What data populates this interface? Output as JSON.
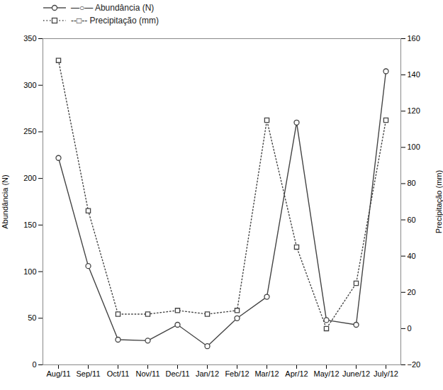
{
  "chart_data": {
    "type": "line",
    "categories": [
      "Aug/11",
      "Sep/11",
      "Oct/11",
      "Nov/11",
      "Dec/11",
      "Jan/12",
      "Feb/12",
      "Mar/12",
      "Apr/12",
      "May/12",
      "June/12",
      "July/12"
    ],
    "series": [
      {
        "name": "—○— Abundância (N)",
        "color": "#444444",
        "marker": "circle",
        "line_style": "solid",
        "values": [
          222,
          106,
          27,
          26,
          43,
          20,
          50,
          73,
          260,
          48,
          43,
          315
        ]
      },
      {
        "name": "--□-- Precipitação (mm)",
        "color": "#444444",
        "marker": "square",
        "line_style": "dotted",
        "axis": "y2",
        "values": [
          148,
          65,
          8,
          8,
          10,
          8,
          10,
          115,
          45,
          0,
          25,
          115
        ]
      }
    ],
    "ylabel": "Abundância (N)",
    "y2label": "Precipitação (mm)",
    "ylim": [
      0,
      350
    ],
    "yticks": [
      0,
      50,
      100,
      150,
      200,
      250,
      300,
      350
    ],
    "y2lim": [
      -20,
      160
    ],
    "y2ticks": [
      -20,
      0,
      20,
      40,
      60,
      80,
      100,
      120,
      140,
      160
    ],
    "legend": "upper left",
    "grid": false
  }
}
